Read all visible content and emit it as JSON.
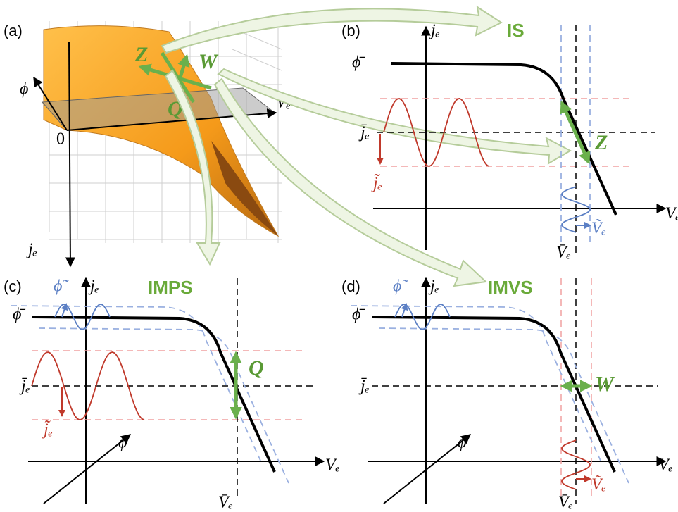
{
  "panels": {
    "a": {
      "label": "(a)",
      "phi_axis": "ϕ",
      "v_axis": "Vₑ",
      "j_axis": "jₑ",
      "origin": "0",
      "z": "Z",
      "w": "W",
      "q": "Q"
    },
    "b": {
      "label": "(b)",
      "title": "IS",
      "j_axis": "jₑ",
      "v_axis": "Vₑ",
      "phi_bar": "ϕ̄",
      "j_bar": "j̄ₑ",
      "j_tilde": "j̃ₑ",
      "v_bar": "V̄ₑ",
      "v_tilde": "Ṽₑ",
      "arrow": "Z"
    },
    "c": {
      "label": "(c)",
      "title": "IMPS",
      "j_axis": "jₑ",
      "v_axis": "Vₑ",
      "phi_axis": "ϕ",
      "phi_bar": "ϕ̄",
      "phi_tilde": "ϕ̃",
      "j_bar": "j̄ₑ",
      "j_tilde": "j̃ₑ",
      "v_bar": "V̄ₑ",
      "arrow": "Q"
    },
    "d": {
      "label": "(d)",
      "title": "IMVS",
      "j_axis": "jₑ",
      "v_axis": "Vₑ",
      "phi_axis": "ϕ",
      "phi_bar": "ϕ̄",
      "phi_tilde": "ϕ̃",
      "j_bar": "j̄ₑ",
      "v_bar": "V̄ₑ",
      "v_tilde": "Ṽₑ",
      "arrow": "W"
    }
  }
}
